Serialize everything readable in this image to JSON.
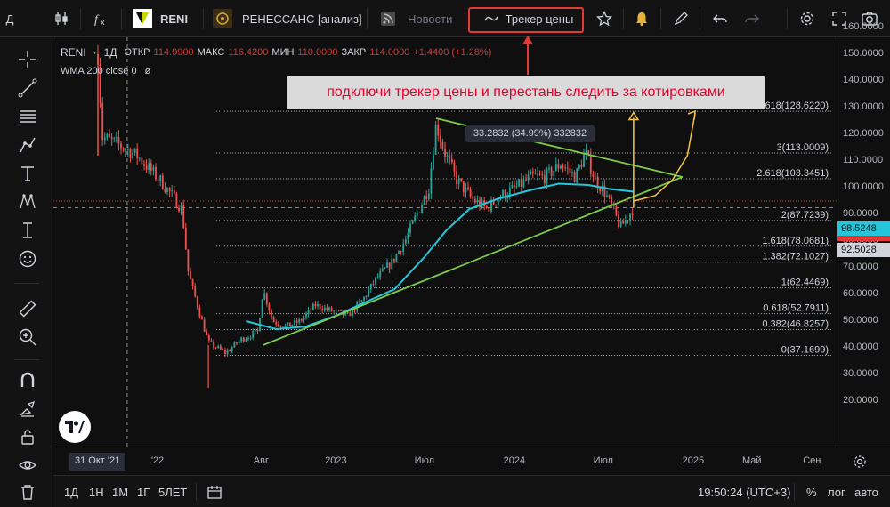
{
  "toolbar": {
    "avatar_letter": "Д",
    "symbol": "RENI",
    "company": "РЕНЕССАНС [анализ]",
    "news": "Новости",
    "price_tracker": "Трекер цены"
  },
  "legend": {
    "symbol": "RENI",
    "dot": "·",
    "interval": "1Д",
    "open_label": "ОТКР",
    "open": "114.9900",
    "high_label": "МАКС",
    "high": "116.4200",
    "low_label": "МИН",
    "low": "110.0000",
    "close_label": "ЗАКР",
    "close": "114.0000",
    "change": "+1.4400 (+1.28%)",
    "indicator": "WMA 200 close 0",
    "indicator_eye": "ø"
  },
  "annotations": {
    "callout": "подключи трекер цены и перестань следить за котировками",
    "measure": "33.2832 (34.99%) 332832"
  },
  "y_axis": {
    "ticks": [
      "160.0000",
      "150.0000",
      "140.0000",
      "130.0000",
      "120.0000",
      "110.0000",
      "100.0000",
      "90.0000",
      "80.0000",
      "70.0000",
      "60.0000",
      "50.0000",
      "40.0000",
      "30.0000",
      "20.0000"
    ],
    "wma_badge": "98.5248",
    "price_badge": "92.5028",
    "colors": {
      "wma": "#26c6da",
      "price": "#d1d4dc",
      "hidden": "#e53935"
    }
  },
  "x_axis": {
    "crosshair_date": "31 Окт '21",
    "ticks": [
      "'22",
      "Авг",
      "2023",
      "Июл",
      "2024",
      "Июл",
      "2025",
      "Май",
      "Сен"
    ]
  },
  "bottom": {
    "intervals": [
      "1Д",
      "1Н",
      "1М",
      "1Г",
      "5ЛЕТ"
    ],
    "time": "19:50:24 (UTC+3)",
    "percent": "%",
    "log": "лог",
    "auto": "авто"
  },
  "chart_data": {
    "type": "candlestick",
    "symbol": "RENI",
    "interval": "1D",
    "ylim": [
      20,
      165
    ],
    "y_ticks": [
      20,
      30,
      40,
      50,
      60,
      70,
      80,
      90,
      100,
      110,
      120,
      130,
      140,
      150,
      160
    ],
    "x_ticks": [
      "'22",
      "Авг",
      "2023",
      "Июл",
      "2024",
      "Июл",
      "2025",
      "Май",
      "Сен"
    ],
    "price_path": [
      [
        "2021-09-01",
        150
      ],
      [
        "2021-09-10",
        119
      ],
      [
        "2021-10-15",
        116
      ],
      [
        "2021-11-20",
        112
      ],
      [
        "2022-01-10",
        102
      ],
      [
        "2022-02-20",
        92
      ],
      [
        "2022-03-05",
        68
      ],
      [
        "2022-03-25",
        55
      ],
      [
        "2022-04-15",
        42
      ],
      [
        "2022-05-20",
        38
      ],
      [
        "2022-06-20",
        43
      ],
      [
        "2022-07-25",
        46
      ],
      [
        "2022-08-05",
        62
      ],
      [
        "2022-08-25",
        50
      ],
      [
        "2022-09-20",
        48
      ],
      [
        "2022-10-20",
        50
      ],
      [
        "2022-11-20",
        56
      ],
      [
        "2022-12-20",
        54
      ],
      [
        "2023-01-25",
        52
      ],
      [
        "2023-02-25",
        58
      ],
      [
        "2023-03-25",
        66
      ],
      [
        "2023-04-25",
        72
      ],
      [
        "2023-05-25",
        81
      ],
      [
        "2023-06-20",
        92
      ],
      [
        "2023-07-10",
        100
      ],
      [
        "2023-07-25",
        124
      ],
      [
        "2023-08-10",
        114
      ],
      [
        "2023-09-05",
        103
      ],
      [
        "2023-10-05",
        96
      ],
      [
        "2023-11-05",
        92
      ],
      [
        "2023-12-05",
        97
      ],
      [
        "2024-01-05",
        100
      ],
      [
        "2024-02-05",
        104
      ],
      [
        "2024-03-05",
        104
      ],
      [
        "2024-04-05",
        109
      ],
      [
        "2024-05-05",
        104
      ],
      [
        "2024-05-25",
        113
      ],
      [
        "2024-06-15",
        103
      ],
      [
        "2024-07-05",
        98
      ],
      [
        "2024-07-25",
        90
      ],
      [
        "2024-08-05",
        85
      ],
      [
        "2024-08-20",
        89
      ],
      [
        "2024-09-01",
        92.5
      ]
    ],
    "wma200": [
      [
        "2022-07-01",
        50
      ],
      [
        "2022-09-01",
        47
      ],
      [
        "2022-11-01",
        48
      ],
      [
        "2023-01-01",
        52
      ],
      [
        "2023-03-01",
        57
      ],
      [
        "2023-05-01",
        62
      ],
      [
        "2023-07-01",
        74
      ],
      [
        "2023-08-15",
        84
      ],
      [
        "2023-10-01",
        92
      ],
      [
        "2023-12-01",
        96
      ],
      [
        "2024-02-01",
        99
      ],
      [
        "2024-04-01",
        101.5
      ],
      [
        "2024-06-01",
        101
      ],
      [
        "2024-07-15",
        99.5
      ],
      [
        "2024-09-01",
        98.5
      ]
    ],
    "fibonacci": [
      {
        "level": "0",
        "value": 37.1699
      },
      {
        "level": "0.382",
        "value": 46.8257
      },
      {
        "level": "0.618",
        "value": 52.7911
      },
      {
        "level": "1",
        "value": 62.4469
      },
      {
        "level": "1.382",
        "value": 72.1027
      },
      {
        "level": "1.618",
        "value": 78.0681
      },
      {
        "level": "2",
        "value": 87.7239
      },
      {
        "level": "2.618",
        "value": 103.3451
      },
      {
        "level": "3",
        "value": 113.0009
      },
      {
        "level": "3.618",
        "value": 128.622
      }
    ],
    "triangle_upper": [
      [
        "2023-07-25",
        126
      ],
      [
        "2024-12-10",
        104
      ]
    ],
    "triangle_lower": [
      [
        "2022-08-05",
        41
      ],
      [
        "2024-12-10",
        104
      ]
    ],
    "measure": {
      "from": [
        "2024-09-01",
        92.5
      ],
      "to": [
        "2024-09-01",
        127.5
      ],
      "label": "33.2832 (34.99%) 332832"
    },
    "forecast_curve": [
      [
        "2024-09-01",
        95
      ],
      [
        "2024-10-15",
        97
      ],
      [
        "2024-11-20",
        103
      ],
      [
        "2024-12-20",
        112
      ],
      [
        "2025-01-05",
        128
      ]
    ],
    "last_price": 92.5028,
    "wma_value": 98.5248
  }
}
